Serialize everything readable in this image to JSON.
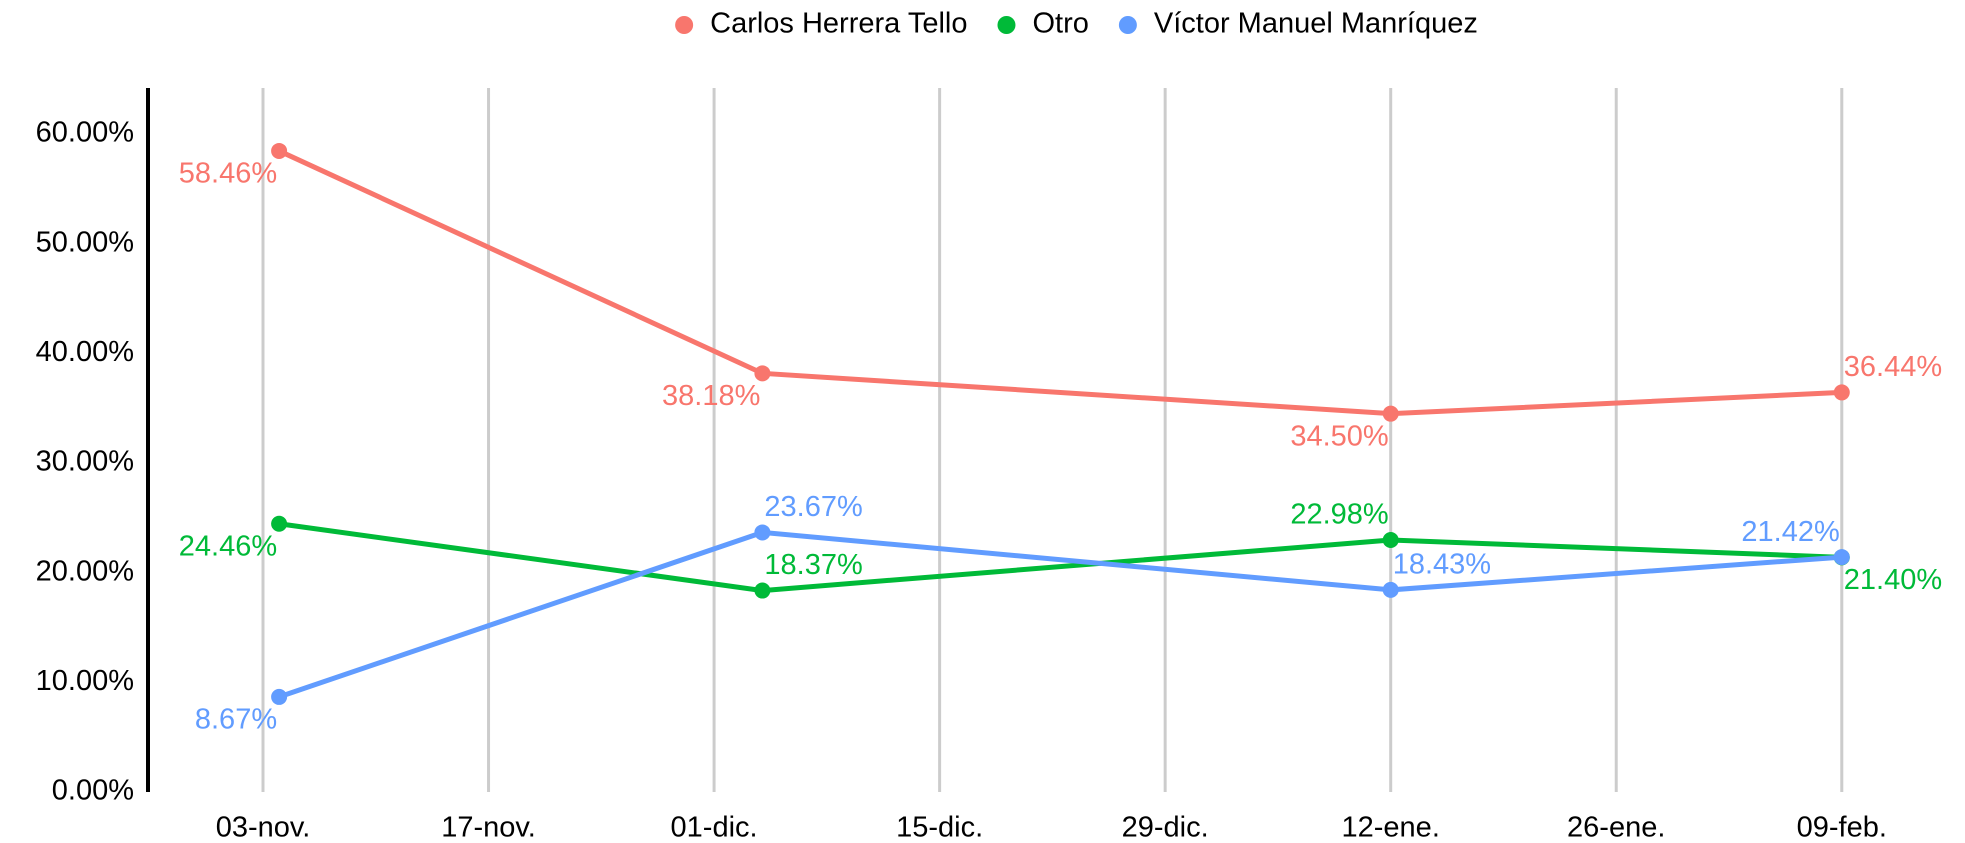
{
  "chart_data": {
    "type": "line",
    "x": [
      "04-nov.",
      "04-dic.",
      "12-ene.",
      "09-feb."
    ],
    "series": [
      {
        "name": "Carlos Herrera Tello",
        "color": "#f8766d",
        "values": [
          58.46,
          38.18,
          34.5,
          36.44
        ],
        "value_labels": [
          "58.46%",
          "38.18%",
          "34.50%",
          "36.44%"
        ]
      },
      {
        "name": "Otro",
        "color": "#00ba38",
        "values": [
          24.46,
          18.37,
          22.98,
          21.4
        ],
        "value_labels": [
          "24.46%",
          "18.37%",
          "22.98%",
          "21.40%"
        ]
      },
      {
        "name": "Víctor Manuel Manríquez",
        "color": "#619cff",
        "values": [
          8.67,
          23.67,
          18.43,
          21.42
        ],
        "value_labels": [
          "8.67%",
          "23.67%",
          "18.43%",
          "21.42%"
        ]
      }
    ],
    "ylim": [
      0,
      64.2
    ],
    "yticks": [
      {
        "value": 0,
        "label": "0.00%"
      },
      {
        "value": 10,
        "label": "10.00%"
      },
      {
        "value": 20,
        "label": "20.00%"
      },
      {
        "value": 30,
        "label": "30.00%"
      },
      {
        "value": 40,
        "label": "40.00%"
      },
      {
        "value": 50,
        "label": "50.00%"
      },
      {
        "value": 60,
        "label": "60.00%"
      }
    ],
    "xticks": [
      "03-nov.",
      "17-nov.",
      "01-dic.",
      "15-dic.",
      "29-dic.",
      "12-ene.",
      "26-ene.",
      "09-feb."
    ],
    "grid": true,
    "legend": "top"
  }
}
